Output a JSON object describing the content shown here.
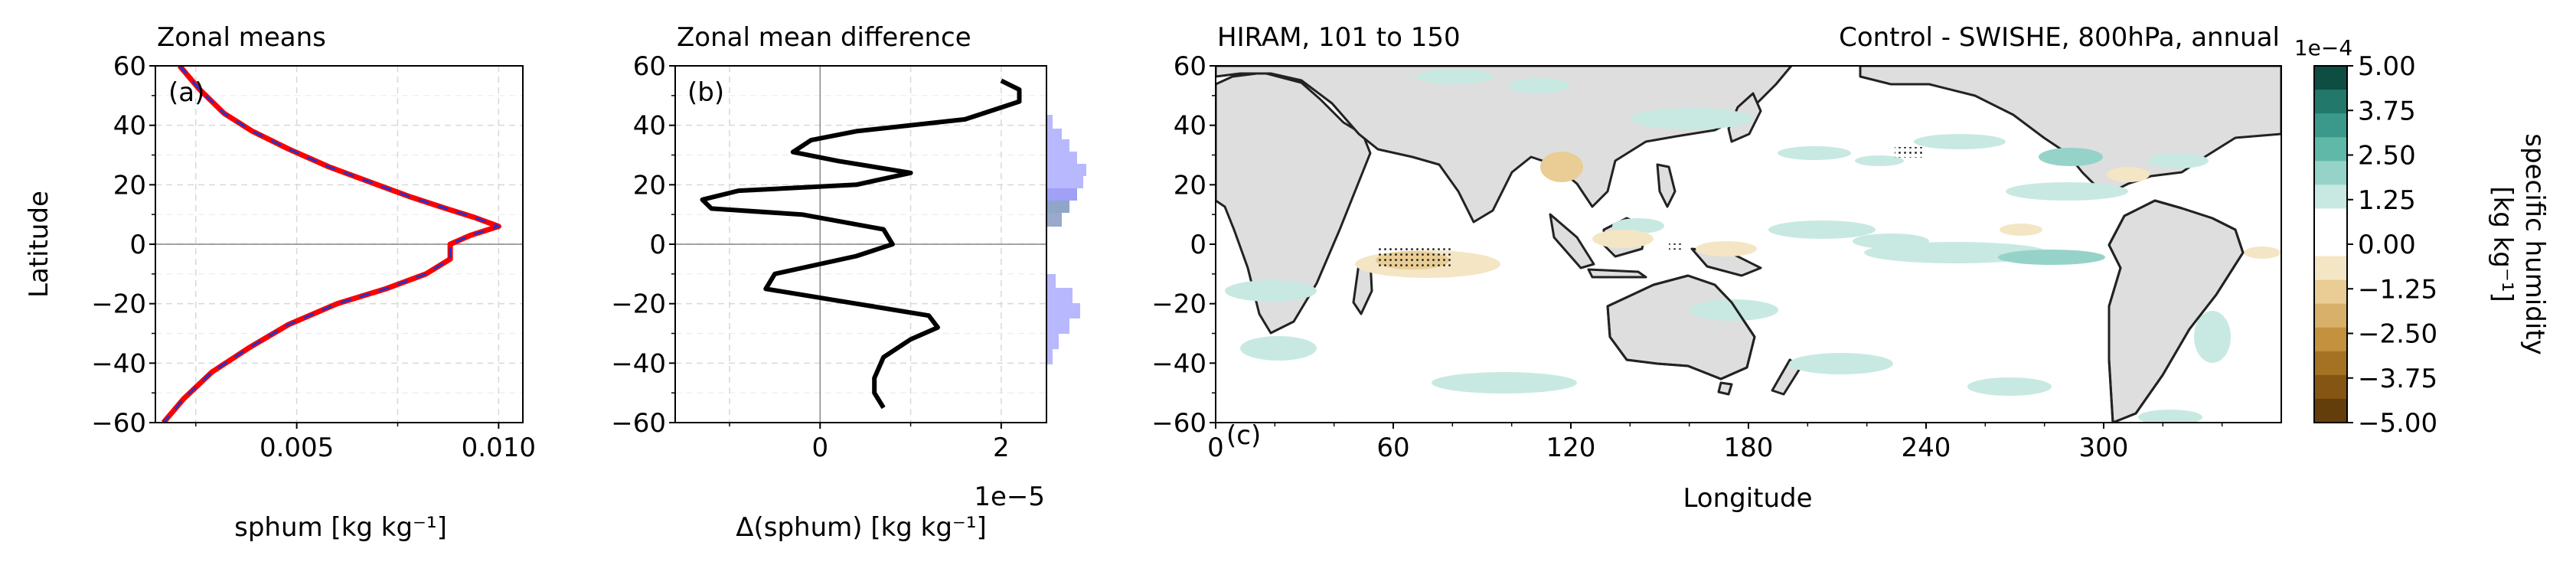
{
  "panel_a": {
    "title": "Zonal means",
    "panel_label": "(a)",
    "ylabel": "Latitude",
    "xlabel": "sphum [kg kg⁻¹]",
    "xticks": [
      "0.005",
      "0.010"
    ],
    "yticks": [
      "60",
      "40",
      "20",
      "0",
      "−20",
      "−40",
      "−60"
    ]
  },
  "panel_b": {
    "title": "Zonal mean difference",
    "panel_label": "(b)",
    "xlabel": "Δ(sphum) [kg kg⁻¹]",
    "xticks": [
      "0",
      "2"
    ],
    "offset_text": "1e−5",
    "yticks": [
      "60",
      "40",
      "20",
      "0",
      "−20",
      "−40",
      "−60"
    ]
  },
  "panel_c": {
    "title_left": "HIRAM, 101 to 150",
    "title_right": "Control - SWISHE, 800hPa, annual",
    "panel_label": "(c)",
    "xlabel": "Longitude",
    "xticks": [
      "0",
      "60",
      "120",
      "180",
      "240",
      "300"
    ],
    "yticks": [
      "60",
      "40",
      "20",
      "0",
      "−20",
      "−40",
      "−60"
    ]
  },
  "colorbar": {
    "offset_text": "1e−4",
    "label_line1": "specific humidity",
    "label_line2": "[kg kg⁻¹]",
    "ticks": [
      "5.00",
      "3.75",
      "2.50",
      "1.25",
      "0.00",
      "−1.25",
      "−2.50",
      "−3.75",
      "−5.00"
    ],
    "colors_top_to_bottom": [
      "#0d4d42",
      "#22786a",
      "#3a998a",
      "#5fb8a8",
      "#95d3c8",
      "#c7e9e2",
      "#ffffff",
      "#ffffff",
      "#f4e6c4",
      "#e9cd94",
      "#d9b06a",
      "#c4923f",
      "#a57223",
      "#855613",
      "#643e0a"
    ]
  },
  "chart_data": [
    {
      "type": "line",
      "title": "Zonal means",
      "xlabel": "sphum [kg kg⁻¹]",
      "ylabel": "Latitude",
      "xlim": [
        0.0015,
        0.0106
      ],
      "ylim": [
        -60,
        60
      ],
      "grid": true,
      "series": [
        {
          "color": "#ff0000",
          "x": [
            0.0021,
            0.0026,
            0.0032,
            0.0039,
            0.0048,
            0.0058,
            0.0068,
            0.0078,
            0.0087,
            0.0094,
            0.01,
            0.0093,
            0.0088,
            0.0088,
            0.0082,
            0.0072,
            0.006,
            0.0048,
            0.0038,
            0.0029,
            0.0022,
            0.0017
          ],
          "y": [
            60,
            52,
            44,
            38,
            32,
            26,
            21,
            16,
            12,
            9,
            6,
            3,
            0,
            -5,
            -10,
            -15,
            -20,
            -27,
            -35,
            -43,
            -52,
            -60
          ]
        },
        {
          "color": "#2233cc",
          "x": [
            0.0021,
            0.0026,
            0.0032,
            0.0039,
            0.0048,
            0.0058,
            0.0068,
            0.0078,
            0.0087,
            0.0094,
            0.01,
            0.0093,
            0.0088,
            0.0088,
            0.0082,
            0.0072,
            0.006,
            0.0048,
            0.0038,
            0.0029,
            0.0022,
            0.0017
          ],
          "y": [
            60,
            52,
            44,
            38,
            32,
            26,
            21,
            16,
            12,
            9,
            6,
            3,
            0,
            -5,
            -10,
            -15,
            -20,
            -27,
            -35,
            -43,
            -52,
            -60
          ]
        }
      ]
    },
    {
      "type": "line",
      "title": "Zonal mean difference",
      "xlabel": "Δ(sphum) [kg kg⁻¹]",
      "x_scale_factor": "1e-5",
      "xlim": [
        -1.6,
        2.5
      ],
      "ylim": [
        -60,
        60
      ],
      "grid": true,
      "series": [
        {
          "color": "#000000",
          "x": [
            2.0,
            2.2,
            2.2,
            1.6,
            0.4,
            -0.1,
            -0.3,
            0.2,
            1.0,
            0.4,
            -0.9,
            -1.3,
            -1.2,
            -0.2,
            0.7,
            0.8,
            0.4,
            -0.5,
            -0.6,
            0.2,
            1.2,
            1.3,
            1.0,
            0.7,
            0.6,
            0.6,
            0.7
          ],
          "y": [
            55,
            52,
            48,
            42,
            38,
            35,
            31,
            28,
            24,
            20,
            18,
            15,
            12,
            10,
            5,
            0,
            -4,
            -10,
            -15,
            -19,
            -24,
            -28,
            -32,
            -38,
            -45,
            -50,
            -55
          ]
        }
      ]
    },
    {
      "type": "heatmap",
      "title": "Control - SWISHE, 800hPa, annual",
      "xlabel": "Longitude",
      "xlim": [
        0,
        360
      ],
      "ylim": [
        -60,
        60
      ],
      "colorbar_range": [
        -0.0005,
        0.0005
      ]
    }
  ]
}
